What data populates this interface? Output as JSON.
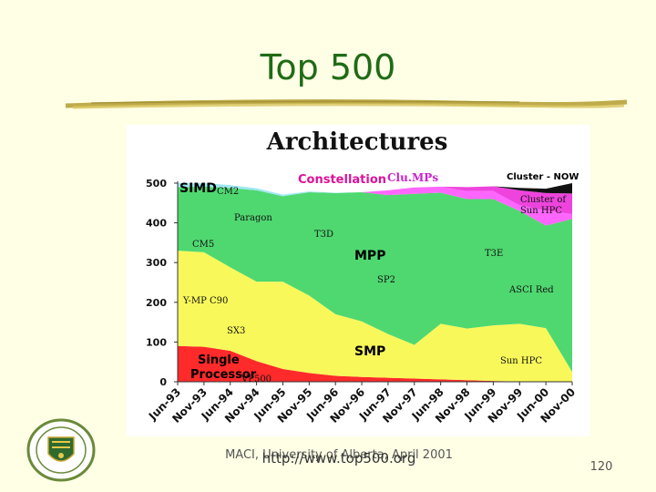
{
  "slide": {
    "title": "Top 500",
    "footer_source": "MACI, University of Alberta, April 2001",
    "footer_url": "http://www.top500.org",
    "page_number": "120"
  },
  "colors": {
    "background": "#ffffe6",
    "title": "#1f6b16",
    "SIMD": "#9ee8f0",
    "Constellation": "#ff66ff",
    "Clu.MPs": "#ee44dd",
    "Cluster - NOW": "#111111",
    "MPP": "#4fd870",
    "SMP": "#f8f85a",
    "Single Processor": "#ff2a2a"
  },
  "chart_data": {
    "type": "area",
    "stacked": true,
    "title": "Architectures",
    "xlabel": "",
    "ylabel": "",
    "ylim": [
      0,
      500
    ],
    "yticks": [
      0,
      100,
      200,
      300,
      400,
      500
    ],
    "categories": [
      "Jun-93",
      "Nov-93",
      "Jun-94",
      "Nov-94",
      "Jun-95",
      "Nov-95",
      "Jun-96",
      "Nov-96",
      "Jun-97",
      "Nov-97",
      "Jun-98",
      "Nov-98",
      "Jun-99",
      "Nov-99",
      "Jun-00",
      "Nov-00"
    ],
    "series": [
      {
        "name": "Single Processor",
        "values": [
          90,
          88,
          78,
          52,
          32,
          22,
          15,
          12,
          10,
          8,
          6,
          4,
          2,
          1,
          0,
          0
        ]
      },
      {
        "name": "SMP",
        "values": [
          240,
          238,
          210,
          200,
          220,
          195,
          155,
          140,
          110,
          85,
          140,
          130,
          140,
          145,
          135,
          25
        ]
      },
      {
        "name": "MPP",
        "values": [
          160,
          165,
          200,
          230,
          215,
          260,
          305,
          325,
          350,
          380,
          330,
          326,
          318,
          284,
          258,
          385
        ]
      },
      {
        "name": "SIMD",
        "values": [
          10,
          9,
          7,
          5,
          4,
          2,
          1,
          0,
          0,
          0,
          0,
          0,
          0,
          0,
          0,
          0
        ]
      },
      {
        "name": "Constellation",
        "values": [
          0,
          0,
          0,
          0,
          0,
          0,
          0,
          0,
          12,
          16,
          15,
          20,
          20,
          14,
          38,
          12
        ]
      },
      {
        "name": "Clu.MPs",
        "values": [
          0,
          0,
          0,
          0,
          0,
          0,
          0,
          0,
          0,
          0,
          0,
          10,
          12,
          38,
          44,
          52
        ]
      },
      {
        "name": "Cluster - NOW",
        "values": [
          0,
          0,
          0,
          0,
          0,
          0,
          0,
          0,
          0,
          0,
          0,
          0,
          0,
          6,
          11,
          26
        ]
      }
    ],
    "annotations": [
      "CM2",
      "Paragon",
      "CM5",
      "T3D",
      "Y-MP C90",
      "SX3",
      "VP500",
      "SP2",
      "T3E",
      "ASCI Red",
      "Sun HPC",
      "Cluster of Sun HPC"
    ]
  }
}
